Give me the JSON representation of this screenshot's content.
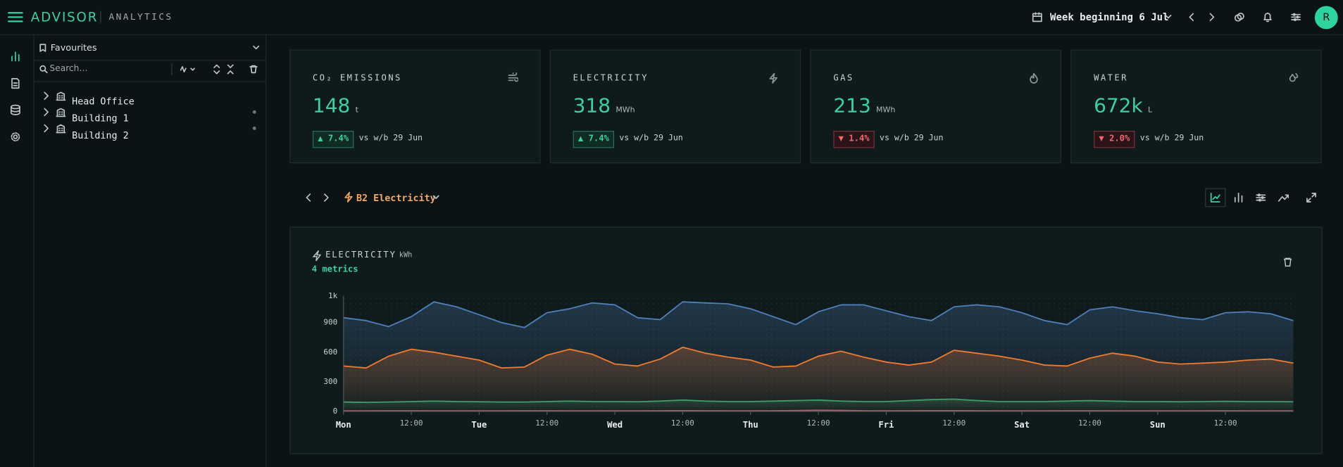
{
  "header": {
    "brand": "ADVISOR",
    "section": "ANALYTICS",
    "week": "Week beginning 6 Jul",
    "avatar": "R"
  },
  "sidebar": {
    "favourites": "Favourites",
    "search": "Search…",
    "tree": [
      "Head Office",
      "Building 1",
      "Building 2"
    ]
  },
  "kpis": [
    {
      "label": "CO₂ EMISSIONS",
      "value": "148",
      "unit": "t",
      "change": "▲ 7.4%",
      "compare": "vs w/b 29 Jun"
    },
    {
      "label": "ELECTRICITY",
      "value": "318",
      "unit": "MWh",
      "change": "▲ 7.4%",
      "compare": "vs w/b 29 Jun"
    },
    {
      "label": "GAS",
      "value": "213",
      "unit": "MWh",
      "change": "▼ 1.4%",
      "compare": "vs w/b 29 Jun"
    },
    {
      "label": "WATER",
      "value": "672k",
      "unit": "L",
      "change": "▼ 2.0%",
      "compare": "vs w/b 29 Jun"
    }
  ],
  "toolbar": {
    "metric": "B2 Electricity"
  },
  "chart_data": {
    "type": "area",
    "title": "ELECTRICITY",
    "unit": "kWh",
    "subtitle": "4 metrics",
    "x": [
      0,
      4,
      8,
      12,
      16,
      20,
      24,
      28,
      32,
      36,
      40,
      44,
      48,
      52,
      56,
      60,
      64,
      68,
      72,
      76,
      80,
      84,
      88,
      92,
      96,
      100,
      104,
      108,
      112,
      116,
      120,
      124,
      128,
      132,
      136,
      140,
      144,
      148,
      152,
      156,
      160,
      164,
      168
    ],
    "xlim": [
      0,
      168
    ],
    "xticks": [
      {
        "value": 0,
        "label": "Mon"
      },
      {
        "value": 12,
        "label": "12:00"
      },
      {
        "value": 24,
        "label": "Tue"
      },
      {
        "value": 36,
        "label": "12:00"
      },
      {
        "value": 48,
        "label": "Wed"
      },
      {
        "value": 60,
        "label": "12:00"
      },
      {
        "value": 72,
        "label": "Thu"
      },
      {
        "value": 84,
        "label": "12:00"
      },
      {
        "value": 96,
        "label": "Fri"
      },
      {
        "value": 108,
        "label": "12:00"
      },
      {
        "value": 120,
        "label": "Sat"
      },
      {
        "value": 132,
        "label": "12:00"
      },
      {
        "value": 144,
        "label": "Sun"
      },
      {
        "value": 156,
        "label": "12:00"
      }
    ],
    "ylim": [
      0,
      1170
    ],
    "yticks": [
      0,
      300,
      600,
      900,
      {
        "value": 1170,
        "label": "1k"
      }
    ],
    "grid": true,
    "series": [
      {
        "color": "#4f7fb8",
        "values": [
          950,
          920,
          860,
          960,
          1110,
          1060,
          980,
          900,
          850,
          1000,
          1040,
          1100,
          1080,
          950,
          930,
          1110,
          1100,
          1090,
          1040,
          960,
          880,
          1010,
          1080,
          1080,
          1020,
          960,
          920,
          1060,
          1080,
          1060,
          1000,
          920,
          880,
          1030,
          1060,
          1020,
          990,
          950,
          930,
          1000,
          1010,
          990,
          920
        ]
      },
      {
        "color": "#f07a32",
        "values": [
          460,
          440,
          560,
          630,
          600,
          560,
          520,
          440,
          450,
          570,
          630,
          580,
          480,
          460,
          530,
          650,
          590,
          550,
          520,
          450,
          460,
          560,
          610,
          550,
          500,
          470,
          500,
          620,
          590,
          560,
          520,
          470,
          460,
          540,
          590,
          560,
          500,
          480,
          490,
          500,
          520,
          530,
          490
        ]
      },
      {
        "color": "#3f9c6c",
        "values": [
          95,
          92,
          95,
          100,
          105,
          100,
          98,
          95,
          95,
          100,
          105,
          100,
          100,
          98,
          105,
          115,
          105,
          100,
          100,
          105,
          110,
          115,
          105,
          100,
          100,
          110,
          120,
          125,
          110,
          100,
          100,
          100,
          105,
          110,
          105,
          100,
          100,
          98,
          100,
          102,
          100,
          100,
          98
        ]
      },
      {
        "color": "#c4566a",
        "values": [
          6,
          6,
          7,
          7,
          6,
          6,
          6,
          6,
          7,
          7,
          6,
          6,
          6,
          6,
          7,
          8,
          7,
          6,
          6,
          7,
          9,
          12,
          10,
          7,
          6,
          7,
          8,
          8,
          7,
          6,
          6,
          6,
          7,
          7,
          6,
          6,
          6,
          6,
          6,
          7,
          6,
          6,
          6
        ]
      }
    ]
  }
}
